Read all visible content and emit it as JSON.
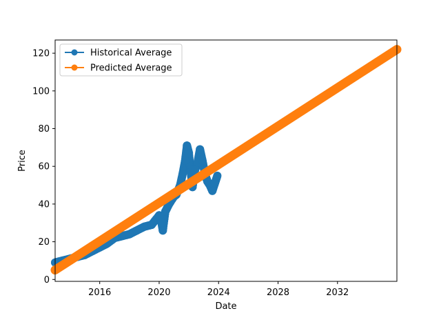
{
  "chart_data": {
    "type": "line",
    "title": "",
    "xlabel": "Date",
    "ylabel": "Price",
    "x_is_date": true,
    "xlim": [
      "2013-01-01",
      "2035-12-31"
    ],
    "ylim": [
      -1,
      127
    ],
    "xticks": [
      "2016",
      "2020",
      "2024",
      "2028",
      "2032"
    ],
    "xtick_dates": [
      "2016-01-01",
      "2020-01-01",
      "2024-01-01",
      "2028-01-01",
      "2032-01-01"
    ],
    "yticks": [
      0,
      20,
      40,
      60,
      80,
      100,
      120
    ],
    "grid": false,
    "legend_position": "top-left",
    "series": [
      {
        "name": "Historical Average",
        "color": "#1f77b4",
        "marker": "circle",
        "x": [
          "2013-01-01",
          "2013-07-01",
          "2014-01-01",
          "2014-07-01",
          "2015-01-01",
          "2015-07-01",
          "2016-01-01",
          "2016-07-01",
          "2017-01-01",
          "2017-07-01",
          "2018-01-01",
          "2018-07-01",
          "2019-01-01",
          "2019-07-01",
          "2020-01-01",
          "2020-03-01",
          "2020-04-01",
          "2020-06-01",
          "2020-09-01",
          "2021-01-01",
          "2021-03-01",
          "2021-06-01",
          "2021-08-01",
          "2021-10-01",
          "2021-11-15",
          "2022-01-01",
          "2022-02-15",
          "2022-04-01",
          "2022-06-01",
          "2022-08-01",
          "2022-10-01",
          "2022-12-01",
          "2023-02-01",
          "2023-04-01",
          "2023-06-01",
          "2023-08-01",
          "2023-10-01",
          "2023-12-01"
        ],
        "y": [
          9,
          10,
          11,
          12,
          13,
          15,
          17,
          19,
          22,
          23,
          24,
          26,
          28,
          29,
          34,
          30,
          26,
          36,
          40,
          44,
          45,
          50,
          56,
          63,
          71,
          67,
          57,
          49,
          58,
          62,
          69,
          63,
          56,
          52,
          50,
          47,
          51,
          55
        ]
      },
      {
        "name": "Predicted Average",
        "color": "#ff7f0e",
        "marker": "circle",
        "x": [
          "2013-01-01",
          "2035-12-31"
        ],
        "y": [
          5,
          122
        ]
      }
    ]
  }
}
